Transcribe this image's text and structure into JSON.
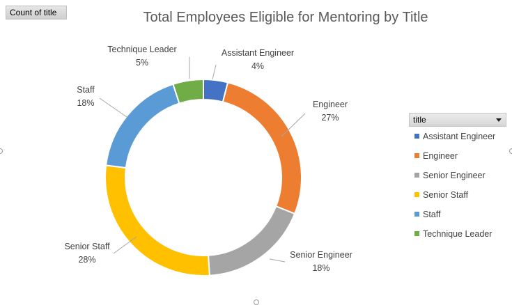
{
  "field_button": {
    "label": "Count  of title"
  },
  "legend_filter": {
    "label": "title"
  },
  "chart_data": {
    "type": "pie",
    "title": "Total Employees Eligible for Mentoring by Title",
    "donut": true,
    "legend_position": "right",
    "categories": [
      "Assistant Engineer",
      "Engineer",
      "Senior Engineer",
      "Senior Staff",
      "Staff",
      "Technique Leader"
    ],
    "values": [
      4,
      27,
      18,
      28,
      18,
      5
    ],
    "data_labels": [
      "4%",
      "27%",
      "18%",
      "28%",
      "18%",
      "5%"
    ],
    "colors": [
      "#4472C4",
      "#ED7D31",
      "#A5A5A5",
      "#FFC000",
      "#5B9BD5",
      "#70AD47"
    ]
  }
}
